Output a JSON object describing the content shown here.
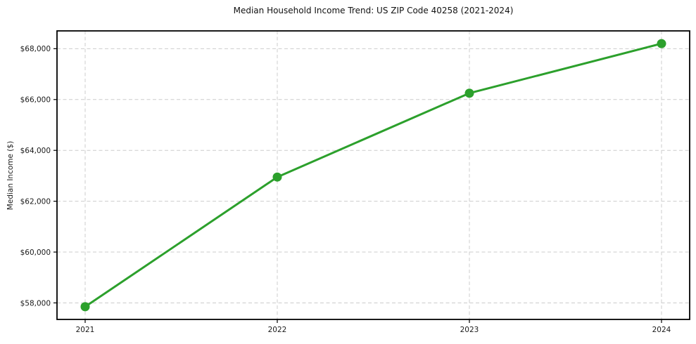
{
  "chart_data": {
    "type": "line",
    "title": "Median Household Income Trend: US ZIP Code 40258 (2021-2024)",
    "xlabel": "",
    "ylabel": "Median Income ($)",
    "categories": [
      "2021",
      "2022",
      "2023",
      "2024"
    ],
    "series": [
      {
        "name": "Median Household Income",
        "values": [
          57850,
          62950,
          66250,
          68200
        ]
      }
    ],
    "ylim": [
      57350,
      68700
    ],
    "yticks": [
      58000,
      60000,
      62000,
      64000,
      66000,
      68000
    ],
    "ytick_labels": [
      "$58,000",
      "$60,000",
      "$62,000",
      "$64,000",
      "$66,000",
      "$68,000"
    ],
    "grid": true,
    "legend": "none",
    "line_color": "#2ca02c",
    "marker": "circle",
    "grid_color": "#cccccc",
    "axis_color": "#000000",
    "text_color": "#1a1a1a",
    "background": "#ffffff"
  }
}
